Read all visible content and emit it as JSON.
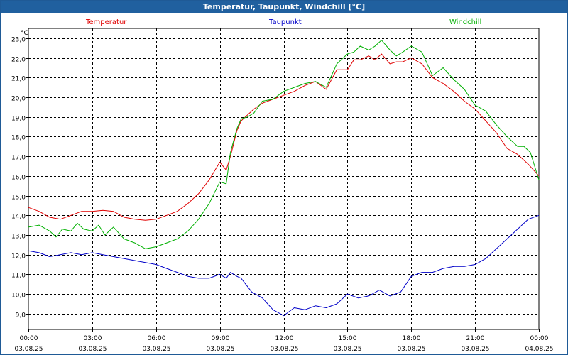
{
  "window": {
    "title": "Temperatur, Taupunkt, Windchill [°C]"
  },
  "colors": {
    "titlebar": "#20609f",
    "temperature": "#e00000",
    "dewpoint": "#0000c8",
    "windchill": "#00b000"
  },
  "chart_data": {
    "type": "line",
    "title": "Temperatur, Taupunkt, Windchill [°C]",
    "ylabel": "°C",
    "ylim": [
      8.2,
      23.5
    ],
    "xlim": [
      0,
      24
    ],
    "grid": true,
    "yticks": [
      "23,0",
      "22,0",
      "21,0",
      "20,0",
      "19,0",
      "18,0",
      "17,0",
      "16,0",
      "15,0",
      "14,0",
      "13,0",
      "12,0",
      "11,0",
      "10,0",
      "9,0"
    ],
    "ytick_values": [
      23,
      22,
      21,
      20,
      19,
      18,
      17,
      16,
      15,
      14,
      13,
      12,
      11,
      10,
      9
    ],
    "xticks": [
      {
        "time": "00:00",
        "date": "03.08.25",
        "x": 0
      },
      {
        "time": "03:00",
        "date": "03.08.25",
        "x": 3
      },
      {
        "time": "06:00",
        "date": "03.08.25",
        "x": 6
      },
      {
        "time": "09:00",
        "date": "03.08.25",
        "x": 9
      },
      {
        "time": "12:00",
        "date": "03.08.25",
        "x": 12
      },
      {
        "time": "15:00",
        "date": "03.08.25",
        "x": 15
      },
      {
        "time": "18:00",
        "date": "03.08.25",
        "x": 18
      },
      {
        "time": "21:00",
        "date": "03.08.25",
        "x": 21
      },
      {
        "time": "00:00",
        "date": "04.08.25",
        "x": 24
      }
    ],
    "series": [
      {
        "name": "Temperatur",
        "color": "#e00000",
        "x": [
          0,
          0.5,
          1,
          1.5,
          2,
          2.5,
          3,
          3.5,
          4,
          4.5,
          5,
          5.5,
          6,
          6.5,
          7,
          7.5,
          8,
          8.5,
          9,
          9.3,
          9.5,
          9.8,
          10,
          10.3,
          10.6,
          11,
          11.5,
          12,
          12.5,
          13,
          13.5,
          14,
          14.5,
          15,
          15.3,
          15.6,
          16,
          16.3,
          16.6,
          17,
          17.3,
          17.6,
          18,
          18.5,
          19,
          19.5,
          20,
          20.5,
          21,
          21.5,
          22,
          22.5,
          23,
          23.5,
          24
        ],
        "values": [
          14.4,
          14.2,
          13.9,
          13.8,
          14.0,
          14.2,
          14.2,
          14.25,
          14.2,
          13.9,
          13.8,
          13.75,
          13.8,
          14.0,
          14.2,
          14.6,
          15.1,
          15.8,
          16.7,
          16.3,
          17.0,
          18.3,
          18.8,
          19.1,
          19.4,
          19.7,
          19.9,
          20.1,
          20.3,
          20.6,
          20.8,
          20.4,
          21.4,
          21.4,
          21.9,
          21.9,
          22.1,
          21.9,
          22.2,
          21.7,
          21.8,
          21.8,
          22.0,
          21.7,
          21.0,
          20.7,
          20.3,
          19.8,
          19.4,
          18.8,
          18.2,
          17.4,
          17.1,
          16.6,
          16.0
        ]
      },
      {
        "name": "Taupunkt",
        "color": "#0000c8",
        "x": [
          0,
          0.5,
          1,
          1.5,
          2,
          2.5,
          3,
          3.5,
          4,
          4.5,
          5,
          5.5,
          6,
          6.5,
          7,
          7.5,
          8,
          8.5,
          9,
          9.3,
          9.5,
          9.8,
          10,
          10.5,
          11,
          11.5,
          12,
          12.5,
          13,
          13.5,
          14,
          14.5,
          15,
          15.5,
          16,
          16.5,
          17,
          17.5,
          18,
          18.5,
          19,
          19.5,
          20,
          20.5,
          21,
          21.5,
          22,
          22.5,
          23,
          23.5,
          24
        ],
        "values": [
          12.2,
          12.1,
          11.9,
          12.0,
          12.1,
          12.0,
          12.1,
          12.0,
          11.9,
          11.8,
          11.7,
          11.6,
          11.5,
          11.3,
          11.1,
          10.9,
          10.8,
          10.8,
          11.0,
          10.8,
          11.1,
          10.9,
          10.8,
          10.1,
          9.8,
          9.2,
          8.9,
          9.3,
          9.2,
          9.4,
          9.3,
          9.5,
          10.0,
          9.8,
          9.9,
          10.2,
          9.9,
          10.1,
          10.9,
          11.1,
          11.1,
          11.3,
          11.4,
          11.4,
          11.5,
          11.8,
          12.3,
          12.8,
          13.3,
          13.8,
          14.0
        ]
      },
      {
        "name": "Windchill",
        "color": "#00b000",
        "x": [
          0,
          0.5,
          1,
          1.3,
          1.6,
          2,
          2.3,
          2.6,
          3,
          3.3,
          3.6,
          4,
          4.5,
          5,
          5.5,
          6,
          6.5,
          7,
          7.5,
          8,
          8.5,
          9,
          9.3,
          9.5,
          9.8,
          10,
          10.3,
          10.6,
          11,
          11.5,
          12,
          12.5,
          13,
          13.5,
          14,
          14.5,
          15,
          15.3,
          15.6,
          16,
          16.3,
          16.6,
          17,
          17.3,
          17.6,
          18,
          18.5,
          19,
          19.5,
          20,
          20.5,
          21,
          21.5,
          22,
          22.5,
          23,
          23.3,
          23.6,
          24
        ],
        "values": [
          13.4,
          13.5,
          13.2,
          12.9,
          13.3,
          13.2,
          13.6,
          13.3,
          13.2,
          13.5,
          13.0,
          13.4,
          12.8,
          12.6,
          12.3,
          12.4,
          12.6,
          12.8,
          13.2,
          13.8,
          14.6,
          15.7,
          15.6,
          17.2,
          18.4,
          18.9,
          19.0,
          19.2,
          19.8,
          19.9,
          20.3,
          20.5,
          20.7,
          20.8,
          20.5,
          21.7,
          22.2,
          22.3,
          22.6,
          22.4,
          22.6,
          22.9,
          22.4,
          22.1,
          22.3,
          22.6,
          22.3,
          21.1,
          21.5,
          20.9,
          20.4,
          19.6,
          19.3,
          18.6,
          18.0,
          17.5,
          17.5,
          17.2,
          15.8
        ]
      }
    ]
  }
}
